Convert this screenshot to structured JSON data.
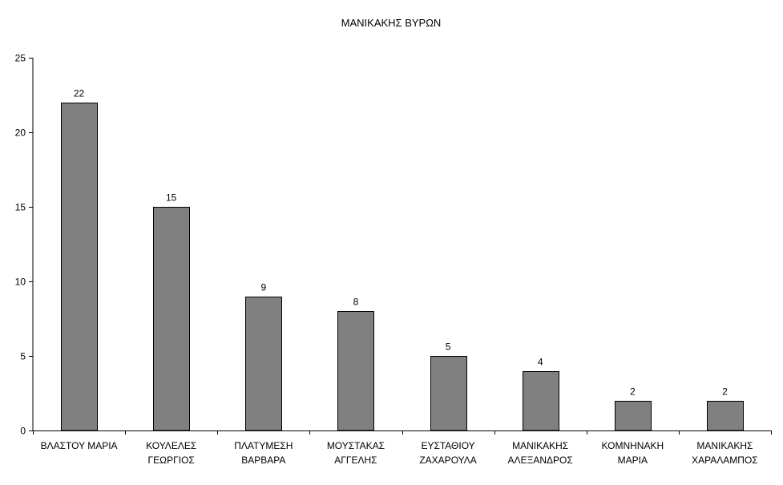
{
  "chart_data": {
    "type": "bar",
    "title": "ΜΑΝΙΚΑΚΗΣ ΒΥΡΩΝ",
    "categories": [
      [
        "ΒΛΑΣΤΟΥ ΜΑΡΙΑ"
      ],
      [
        "ΚΟΥΛΕΛΕΣ",
        "ΓΕΩΡΓΙΟΣ"
      ],
      [
        "ΠΛΑΤΥΜΕΣΗ",
        "ΒΑΡΒΑΡΑ"
      ],
      [
        "ΜΟΥΣΤΑΚΑΣ",
        "ΑΓΓΕΛΗΣ"
      ],
      [
        "ΕΥΣΤΑΘΙΟΥ",
        "ΖΑΧΑΡΟΥΛΑ"
      ],
      [
        "ΜΑΝΙΚΑΚΗΣ",
        "ΑΛΕΞΑΝΔΡΟΣ"
      ],
      [
        "ΚΟΜΝΗΝΑΚΗ",
        "ΜΑΡΙΑ"
      ],
      [
        "ΜΑΝΙΚΑΚΗΣ",
        "ΧΑΡΑΛΑΜΠΟΣ"
      ]
    ],
    "values": [
      22,
      15,
      9,
      8,
      5,
      4,
      2,
      2
    ],
    "data_labels": [
      "22",
      "15",
      "9",
      "8",
      "5",
      "4",
      "2",
      "2"
    ],
    "ylim": [
      0,
      25
    ],
    "yticks": [
      "0",
      "5",
      "10",
      "15",
      "20",
      "25"
    ],
    "xlabel": "",
    "ylabel": "",
    "grid": false,
    "legend": "none",
    "colors": {
      "bar_fill": "#808080",
      "bar_stroke": "#000000",
      "axis": "#000000"
    }
  }
}
